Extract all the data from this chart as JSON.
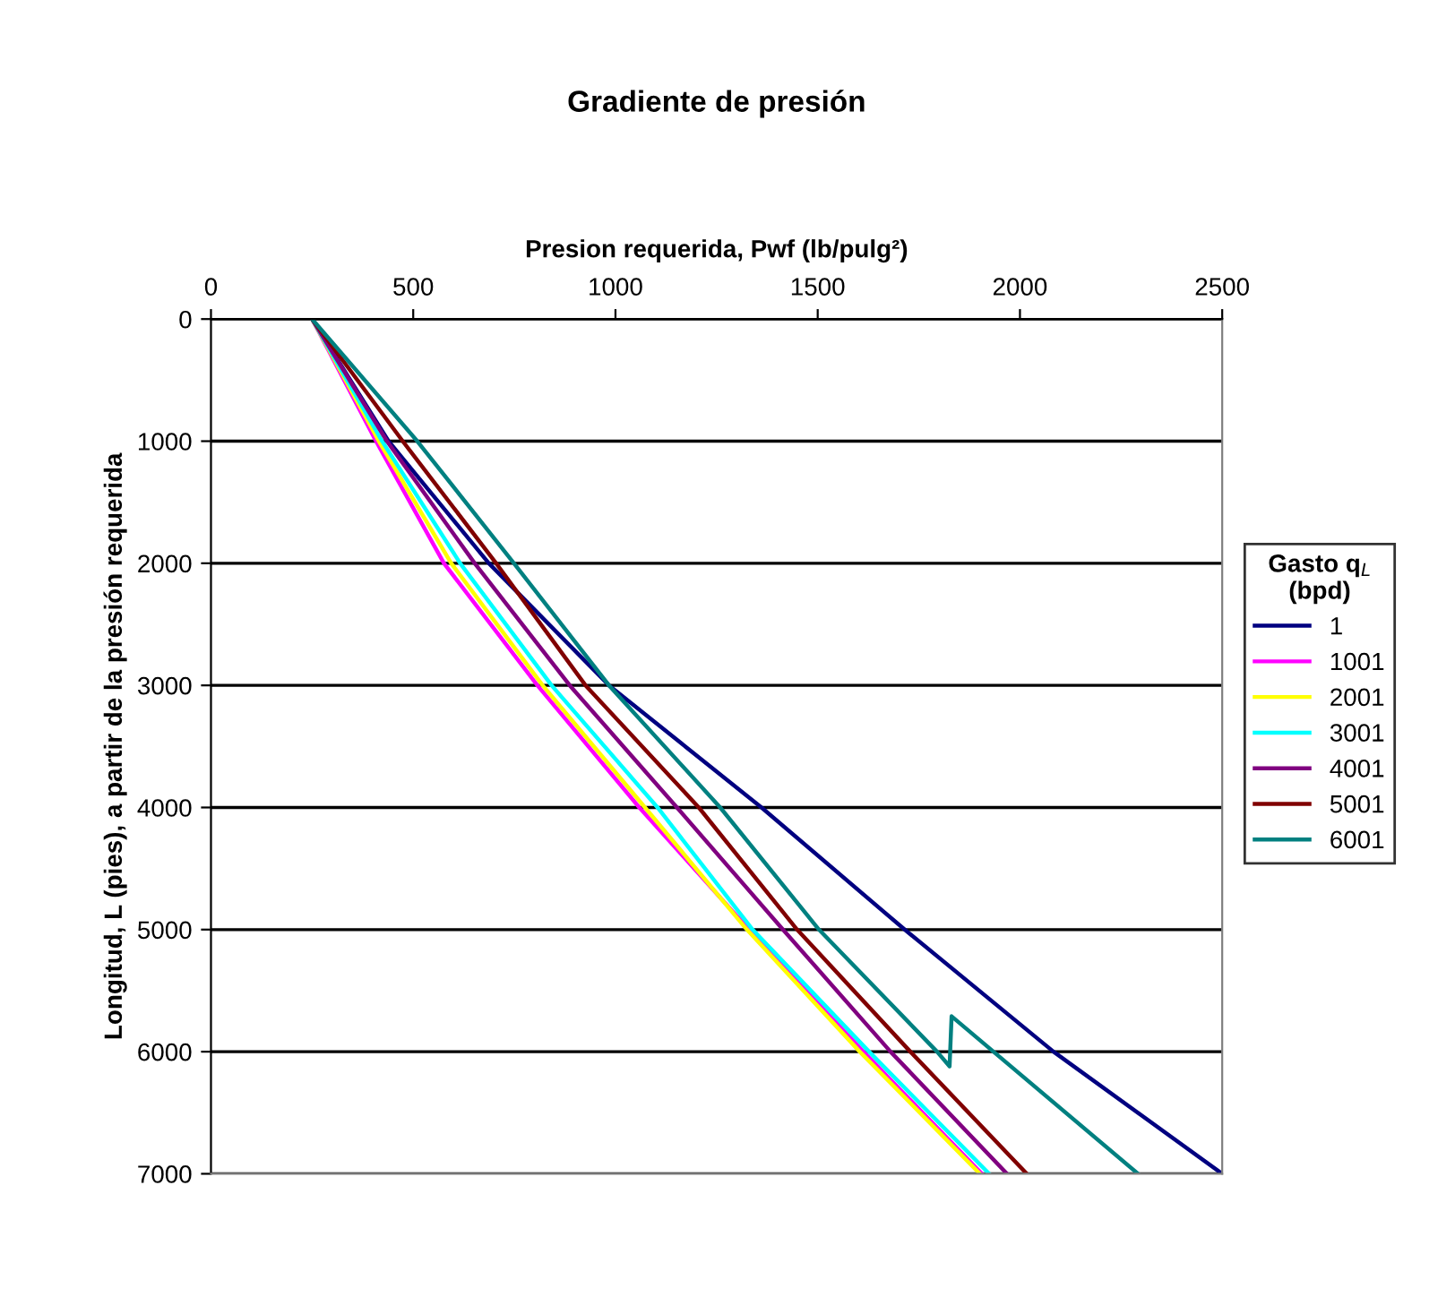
{
  "chart_data": {
    "type": "line",
    "title": "Gradiente de presión",
    "xlabel": "Presion requerida, Pwf (lb/pulg²)",
    "ylabel": "Longitud, L (pies), a partir de la presión requerida",
    "legend_title": "Gasto q$_{L}$\n(bpd)",
    "xlim": [
      0,
      2500
    ],
    "xticks": [
      0,
      500,
      1000,
      1500,
      2000,
      2500
    ],
    "ylim": [
      7000,
      0
    ],
    "yticks": [
      0,
      1000,
      2000,
      3000,
      4000,
      5000,
      6000,
      7000
    ],
    "grid": "y",
    "legend": "right",
    "marker": "none",
    "line_style": "solid",
    "series": [
      {
        "name": "1",
        "color": "#000080",
        "x": [
          250,
          439,
          687,
          984,
          1361,
          1715,
          2083,
          2500
        ],
        "values": [
          0,
          1000,
          2000,
          3000,
          4000,
          5000,
          6000,
          7000
        ]
      },
      {
        "name": "1001",
        "color": "#ff00ff",
        "x": [
          250,
          408,
          576,
          807,
          1059,
          1330,
          1613,
          1906
        ],
        "values": [
          0,
          1000,
          2000,
          3000,
          4000,
          5000,
          6000,
          7000
        ]
      },
      {
        "name": "2001",
        "color": "#ffff00",
        "x": [
          250,
          415,
          594,
          820,
          1073,
          1325,
          1604,
          1901
        ],
        "values": [
          0,
          1000,
          2000,
          3000,
          4000,
          5000,
          6000,
          7000
        ]
      },
      {
        "name": "3001",
        "color": "#00ffff",
        "x": [
          250,
          423,
          616,
          842,
          1104,
          1339,
          1627,
          1924
        ],
        "values": [
          0,
          1000,
          2000,
          3000,
          4000,
          5000,
          6000,
          7000
        ]
      },
      {
        "name": "4001",
        "color": "#800080",
        "x": [
          250,
          435,
          652,
          887,
          1152,
          1414,
          1680,
          1968
        ],
        "values": [
          0,
          1000,
          2000,
          3000,
          4000,
          5000,
          6000,
          7000
        ]
      },
      {
        "name": "5001",
        "color": "#800000",
        "x": [
          250,
          474,
          705,
          926,
          1206,
          1449,
          1729,
          2017
        ],
        "values": [
          0,
          1000,
          2000,
          3000,
          4000,
          5000,
          6000,
          7000
        ]
      },
      {
        "name": "6001",
        "color": "#008080",
        "x": [
          250,
          510,
          749,
          984,
          1259,
          1503,
          1795,
          1826,
          1831,
          2292
        ],
        "values": [
          0,
          1000,
          2000,
          3000,
          4000,
          5000,
          6000,
          6120,
          5710,
          7000
        ]
      }
    ]
  }
}
